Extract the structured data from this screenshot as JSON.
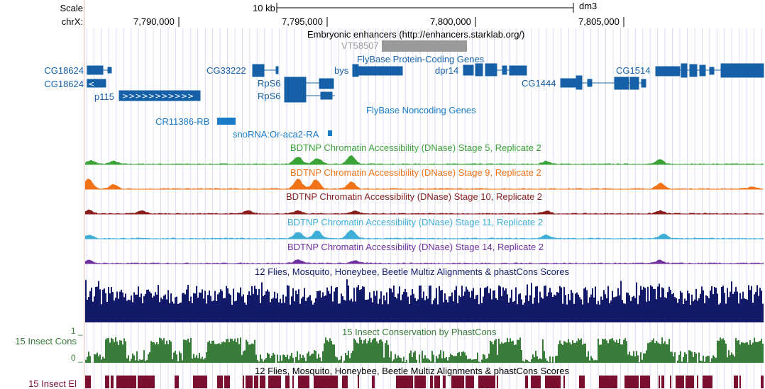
{
  "header": {
    "scale_label": "Scale",
    "chrom_label": "chrX:",
    "scale_bar_label": "10 kb",
    "assembly": "dm3",
    "positions": [
      "7,790,000",
      "7,795,000",
      "7,800,000",
      "7,805,000"
    ]
  },
  "tracks": {
    "enhancers_title": "Embryonic enhancers (http://enhancers.starklab.org/)",
    "enhancer_item": "VT58507",
    "coding_title": "FlyBase Protein-Coding Genes",
    "noncoding_title": "FlyBase Noncoding Genes",
    "dnase_titles": [
      "BDTNP Chromatin Accessibility (DNase) Stage 5, Replicate 2",
      "BDTNP Chromatin Accessibility (DNase) Stage 9, Replicate 2",
      "BDTNP Chromatin Accessibility (DNase) Stage 10, Replicate 2",
      "BDTNP Chromatin Accessibility (DNase) Stage 11, Replicate 2",
      "BDTNP Chromatin Accessibility (DNase) Stage 14, Replicate 2"
    ],
    "dnase_colors": [
      "#3aa336",
      "#f07318",
      "#8b1c1c",
      "#3eaed6",
      "#7030a0"
    ],
    "multiz_title": "12 Flies, Mosquito, Honeybee, Beetle Multiz Alignments & phastCons Scores",
    "phastcons_title": "15 Insect Conservation by PhastCons",
    "phastcons_side_label": "15 Insect Cons",
    "phastcons_max": "1 _",
    "phastcons_min": "0 _",
    "elements_title": "12 Flies, Mosquito, Honeybee, Beetle Multiz Alignments & phastCons Scores",
    "elements_side_label": "15 Insect El"
  },
  "genes": {
    "left_labels": [
      "CG18624",
      "CG18624"
    ],
    "items": [
      "p115",
      "CG33222",
      "RpS6",
      "RpS6",
      "bys",
      "dpr14",
      "CG1444",
      "CG1514"
    ],
    "noncoding": [
      "CR11386-RB",
      "snoRNA:Or-aca2-RA"
    ]
  },
  "colors": {
    "gene": "#1660a8",
    "noncoding": "#1a7cc9",
    "multiz": "#141a6a",
    "phastcons": "#3a7d3a",
    "elements": "#7a1030",
    "enhancer": "#999999"
  }
}
